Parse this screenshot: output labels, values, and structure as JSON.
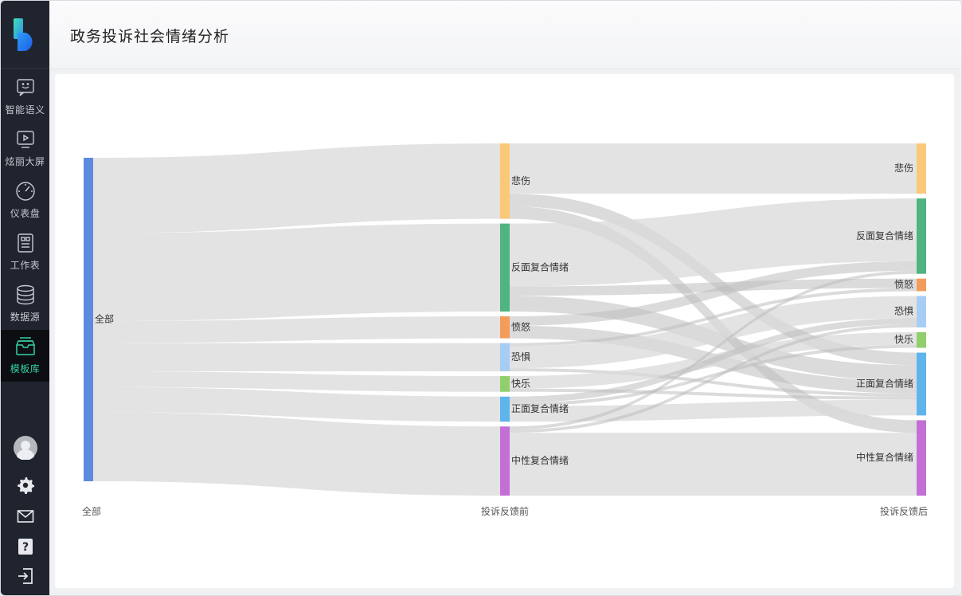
{
  "page": {
    "title": "政务投诉社会情绪分析"
  },
  "sidebar": {
    "items": [
      {
        "label": "智能语义",
        "icon": "smile-chat-icon",
        "active": false
      },
      {
        "label": "炫丽大屏",
        "icon": "screen-play-icon",
        "active": false
      },
      {
        "label": "仪表盘",
        "icon": "gauge-icon",
        "active": false
      },
      {
        "label": "工作表",
        "icon": "worksheet-icon",
        "active": false
      },
      {
        "label": "数据源",
        "icon": "database-icon",
        "active": false
      },
      {
        "label": "模板库",
        "icon": "template-inbox-icon",
        "active": true
      }
    ],
    "bottom": [
      "avatar",
      "settings-gear-icon",
      "mail-icon",
      "help-icon",
      "logout-icon"
    ]
  },
  "chart_data": {
    "type": "sankey",
    "title": "",
    "columns": [
      "全部",
      "投诉反馈前",
      "投诉反馈后"
    ],
    "nodes": [
      {
        "name": "全部",
        "column": 0,
        "color": "#5b8ae0"
      },
      {
        "name": "悲伤",
        "column": 1,
        "color": "#fbc878"
      },
      {
        "name": "反面复合情绪",
        "column": 1,
        "color": "#4fb382"
      },
      {
        "name": "愤怒",
        "column": 1,
        "color": "#f39c5c"
      },
      {
        "name": "恐惧",
        "column": 1,
        "color": "#a7cdf5"
      },
      {
        "name": "快乐",
        "column": 1,
        "color": "#91cf6d"
      },
      {
        "name": "正面复合情绪",
        "column": 1,
        "color": "#5fb4ec"
      },
      {
        "name": "中性复合情绪",
        "column": 1,
        "color": "#c36fd6"
      },
      {
        "name": "悲伤",
        "column": 2,
        "color": "#fbc878"
      },
      {
        "name": "反面复合情绪",
        "column": 2,
        "color": "#4fb382"
      },
      {
        "name": "愤怒",
        "column": 2,
        "color": "#f39c5c"
      },
      {
        "name": "恐惧",
        "column": 2,
        "color": "#a7cdf5"
      },
      {
        "name": "快乐",
        "column": 2,
        "color": "#91cf6d"
      },
      {
        "name": "正面复合情绪",
        "column": 2,
        "color": "#5fb4ec"
      },
      {
        "name": "中性复合情绪",
        "column": 2,
        "color": "#c36fd6"
      }
    ],
    "links": [
      {
        "source": 0,
        "target": 1,
        "value": 24
      },
      {
        "source": 0,
        "target": 2,
        "value": 28
      },
      {
        "source": 0,
        "target": 3,
        "value": 7
      },
      {
        "source": 0,
        "target": 4,
        "value": 9
      },
      {
        "source": 0,
        "target": 5,
        "value": 5
      },
      {
        "source": 0,
        "target": 6,
        "value": 8
      },
      {
        "source": 0,
        "target": 7,
        "value": 22
      },
      {
        "source": 1,
        "target": 8,
        "value": 16
      },
      {
        "source": 1,
        "target": 14,
        "value": 4
      },
      {
        "source": 1,
        "target": 13,
        "value": 4
      },
      {
        "source": 2,
        "target": 9,
        "value": 20
      },
      {
        "source": 2,
        "target": 10,
        "value": 3
      },
      {
        "source": 2,
        "target": 13,
        "value": 5
      },
      {
        "source": 3,
        "target": 9,
        "value": 3
      },
      {
        "source": 3,
        "target": 13,
        "value": 4
      },
      {
        "source": 4,
        "target": 11,
        "value": 7
      },
      {
        "source": 4,
        "target": 10,
        "value": 1
      },
      {
        "source": 4,
        "target": 13,
        "value": 1
      },
      {
        "source": 5,
        "target": 12,
        "value": 4
      },
      {
        "source": 5,
        "target": 13,
        "value": 1
      },
      {
        "source": 6,
        "target": 11,
        "value": 2
      },
      {
        "source": 6,
        "target": 13,
        "value": 5
      },
      {
        "source": 6,
        "target": 12,
        "value": 1
      },
      {
        "source": 7,
        "target": 14,
        "value": 20
      },
      {
        "source": 7,
        "target": 11,
        "value": 1
      },
      {
        "source": 7,
        "target": 9,
        "value": 1
      }
    ]
  }
}
